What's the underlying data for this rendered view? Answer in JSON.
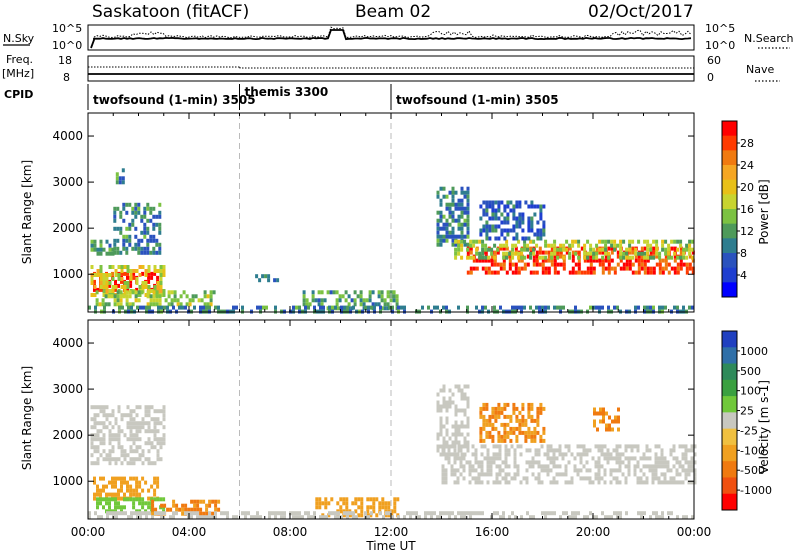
{
  "header": {
    "station": "Saskatoon (fitACF)",
    "beam": "Beam 02",
    "date": "02/Oct/2017"
  },
  "top_panels": {
    "nsky_label": "N.Sky",
    "nsky_ticks": [
      "10^5",
      "10^0"
    ],
    "nsearch_ticks": [
      "10^5",
      "10^0"
    ],
    "nsearch_label": "N.Search",
    "freq_label_1": "Freq.",
    "freq_label_2": "[MHz]",
    "freq_ticks": [
      "18",
      "8"
    ],
    "nave_ticks": [
      "60",
      "0"
    ],
    "nave_label": "Nave",
    "cpid_label": "CPID",
    "cpid_segments": [
      {
        "label": "twofsound (1-min) 3505",
        "start_hour": 0,
        "end_hour": 6
      },
      {
        "label": "themis 3300",
        "start_hour": 6,
        "end_hour": 12
      },
      {
        "label": "twofsound (1-min) 3505",
        "start_hour": 12,
        "end_hour": 24
      }
    ]
  },
  "axes": {
    "ylabel": "Slant Range [km]",
    "yticks": [
      "4000",
      "3000",
      "2000",
      "1000"
    ],
    "xticks": [
      "00:00",
      "04:00",
      "08:00",
      "12:00",
      "16:00",
      "20:00",
      "00:00"
    ],
    "xlabel": "Time UT"
  },
  "power_colorbar": {
    "label": "Power [dB]",
    "ticks": [
      "28",
      "24",
      "20",
      "16",
      "12",
      "8",
      "4"
    ],
    "colors": [
      "#ff0000",
      "#ff3a00",
      "#f07a10",
      "#f5a623",
      "#e8c018",
      "#c8d430",
      "#7cc242",
      "#4e9a5a",
      "#2e7d8f",
      "#2a52be",
      "#1f3fd0",
      "#0000ff"
    ]
  },
  "velocity_colorbar": {
    "label": "Velocity [m s-1]",
    "ticks": [
      "1000",
      "500",
      "100",
      "25",
      "-25",
      "-100",
      "-500",
      "-1000"
    ],
    "colors": [
      "#2040c0",
      "#2f6fa8",
      "#2e8a5a",
      "#3aa040",
      "#70c83a",
      "#c8c8c0",
      "#f0c040",
      "#f0a020",
      "#f07a10",
      "#f05010",
      "#ff0000"
    ]
  },
  "chart_data": {
    "type": "heatmap",
    "x_range_hours": [
      0,
      24
    ],
    "y_range_km": [
      180,
      4500
    ],
    "power_regions": [
      {
        "t0": 0.2,
        "t1": 2.7,
        "r0": 700,
        "r1": 1050,
        "power": 28
      },
      {
        "t0": 0.1,
        "t1": 3.0,
        "r0": 550,
        "r1": 1200,
        "power": 16
      },
      {
        "t0": 0.1,
        "t1": 1.0,
        "r0": 1450,
        "r1": 1750,
        "power": 10
      },
      {
        "t0": 1.0,
        "t1": 2.8,
        "r0": 1500,
        "r1": 2550,
        "power": 8
      },
      {
        "t0": 1.1,
        "t1": 1.4,
        "r0": 3000,
        "r1": 3300,
        "power": 8
      },
      {
        "t0": 0.3,
        "t1": 5.0,
        "r0": 350,
        "r1": 650,
        "power": 14
      },
      {
        "t0": 6.5,
        "t1": 7.5,
        "r0": 900,
        "r1": 1000,
        "power": 6
      },
      {
        "t0": 8.5,
        "t1": 12.3,
        "r0": 250,
        "r1": 650,
        "power": 10
      },
      {
        "t0": 13.8,
        "t1": 15.0,
        "r0": 1600,
        "r1": 2900,
        "power": 8
      },
      {
        "t0": 15.0,
        "t1": 24.0,
        "r0": 1000,
        "r1": 1600,
        "power": 26
      },
      {
        "t0": 14.5,
        "t1": 24.0,
        "r0": 1400,
        "r1": 1750,
        "power": 14
      },
      {
        "t0": 15.5,
        "t1": 18.0,
        "r0": 1800,
        "r1": 2600,
        "power": 6
      },
      {
        "t0": 0.0,
        "t1": 24.0,
        "r0": 180,
        "r1": 320,
        "power": 8
      }
    ],
    "velocity_regions": [
      {
        "t0": 0.1,
        "t1": 3.0,
        "r0": 1350,
        "r1": 2650,
        "velocity": 0
      },
      {
        "t0": 0.2,
        "t1": 2.7,
        "r0": 650,
        "r1": 1100,
        "velocity": -150
      },
      {
        "t0": 0.2,
        "t1": 3.0,
        "r0": 380,
        "r1": 650,
        "velocity": 60
      },
      {
        "t0": 2.5,
        "t1": 5.2,
        "r0": 300,
        "r1": 600,
        "velocity": -300
      },
      {
        "t0": 9.0,
        "t1": 12.3,
        "r0": 250,
        "r1": 650,
        "velocity": -150
      },
      {
        "t0": 13.8,
        "t1": 15.0,
        "r0": 1600,
        "r1": 3100,
        "velocity": 0
      },
      {
        "t0": 14.0,
        "t1": 24.0,
        "r0": 1000,
        "r1": 1800,
        "velocity": 0
      },
      {
        "t0": 15.5,
        "t1": 18.0,
        "r0": 1900,
        "r1": 2700,
        "velocity": -300
      },
      {
        "t0": 20.0,
        "t1": 21.0,
        "r0": 2100,
        "r1": 2600,
        "velocity": -300
      },
      {
        "t0": 0.0,
        "t1": 24.0,
        "r0": 180,
        "r1": 350,
        "velocity": 0
      }
    ]
  }
}
